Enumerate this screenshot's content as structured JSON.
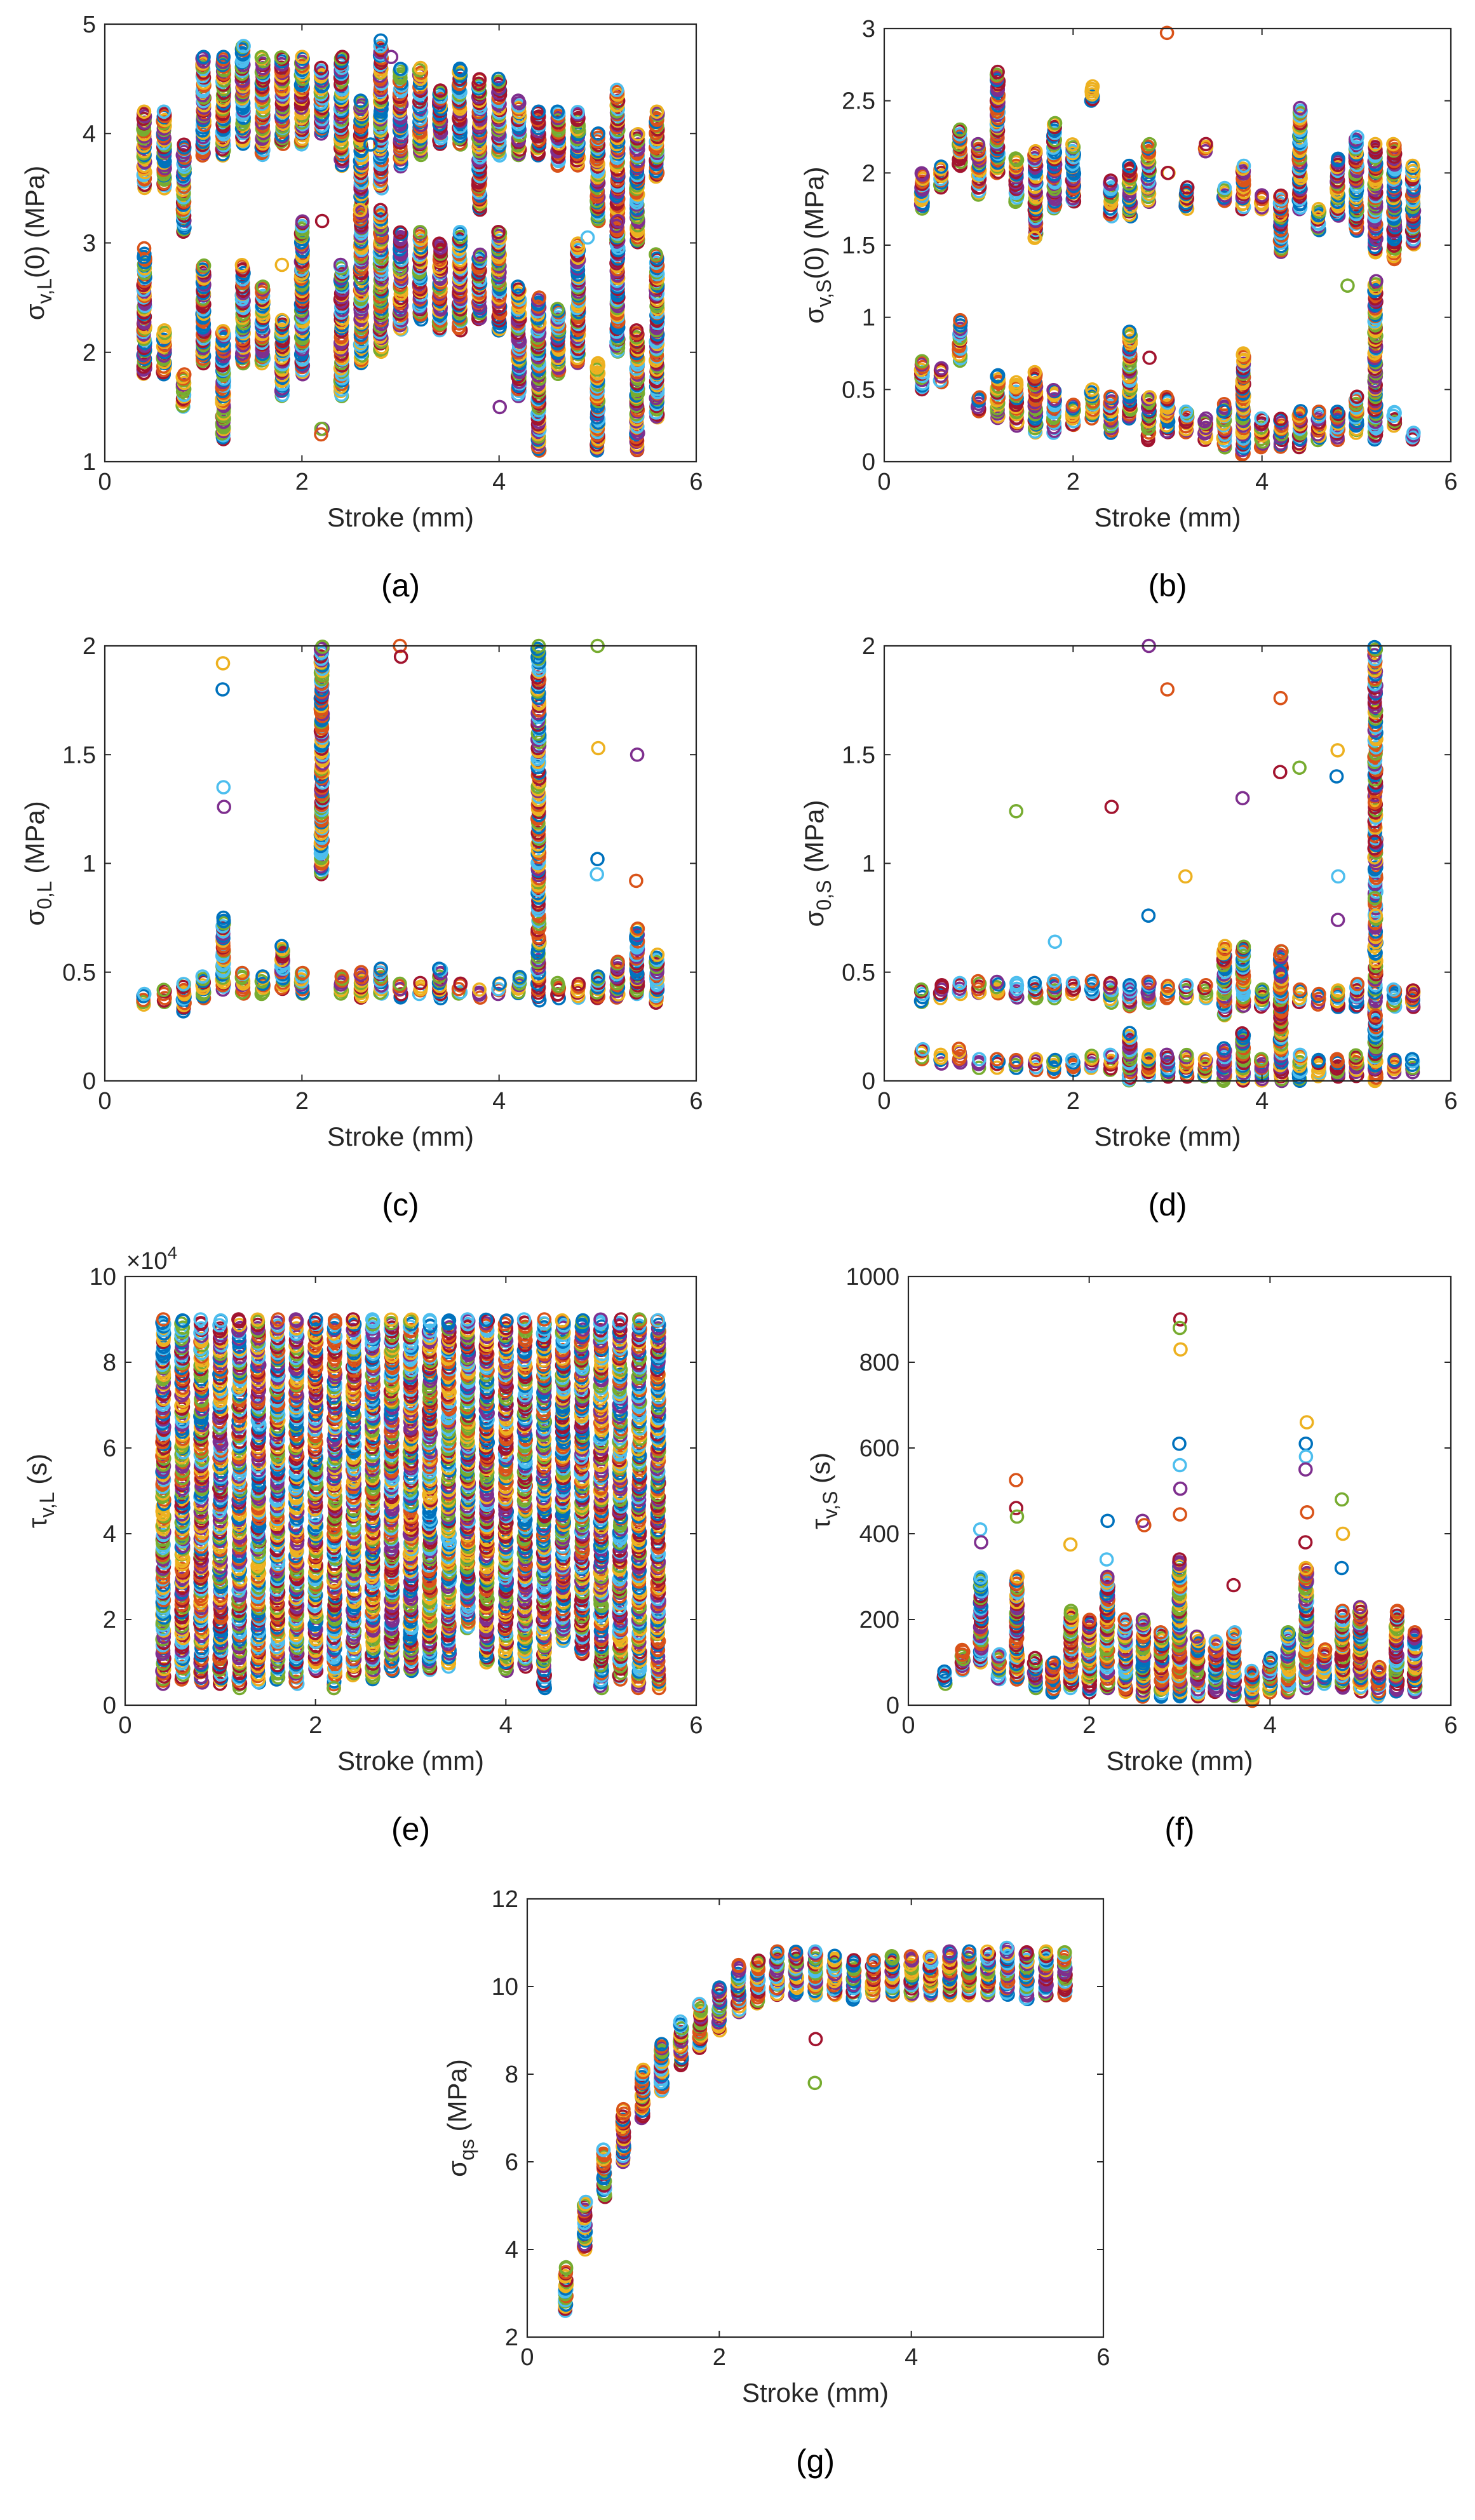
{
  "figure": {
    "xlabel": "Stroke (mm)",
    "colors": [
      "#0072BD",
      "#D95319",
      "#EDB120",
      "#7E2F8E",
      "#77AC30",
      "#4DBEEE",
      "#A2142F"
    ]
  },
  "chart_data": [
    {
      "id": "a",
      "type": "scatter",
      "panel_label": "(a)",
      "xlabel": "Stroke (mm)",
      "ylabel": "σ",
      "ylabel_sub": "v,L",
      "ylabel_suffix": "(0) (MPa)",
      "xlim": [
        0,
        6
      ],
      "ylim": [
        1,
        5
      ],
      "xticks": [
        0,
        2,
        4,
        6
      ],
      "yticks": [
        1,
        2,
        3,
        4,
        5
      ],
      "multiplier": "",
      "x": [
        0.4,
        0.6,
        0.8,
        1.0,
        1.2,
        1.4,
        1.6,
        1.8,
        2.0,
        2.2,
        2.4,
        2.6,
        2.8,
        3.0,
        3.2,
        3.4,
        3.6,
        3.8,
        4.0,
        4.2,
        4.4,
        4.6,
        4.8,
        5.0,
        5.2,
        5.4,
        5.6
      ],
      "upper_low": [
        3.5,
        3.5,
        3.1,
        3.8,
        3.8,
        3.9,
        3.8,
        3.9,
        3.9,
        4.0,
        3.7,
        3.3,
        3.5,
        3.7,
        3.8,
        3.9,
        3.9,
        3.3,
        3.8,
        3.8,
        3.8,
        3.7,
        3.7,
        3.2,
        3.0,
        3.0,
        3.6
      ],
      "upper_high": [
        4.2,
        4.2,
        3.9,
        4.7,
        4.7,
        4.8,
        4.7,
        4.7,
        4.7,
        4.6,
        4.7,
        4.3,
        4.8,
        4.6,
        4.6,
        4.4,
        4.6,
        4.5,
        4.5,
        4.3,
        4.2,
        4.2,
        4.2,
        4.0,
        4.4,
        4.0,
        4.2
      ],
      "lower_low": [
        1.8,
        1.8,
        1.5,
        1.9,
        1.2,
        1.9,
        1.9,
        1.6,
        1.8,
        1.3,
        1.6,
        1.9,
        2.0,
        2.2,
        2.3,
        2.2,
        2.2,
        2.3,
        2.2,
        1.6,
        1.1,
        1.8,
        1.9,
        1.1,
        2.0,
        1.1,
        1.4
      ],
      "lower_high": [
        2.9,
        2.2,
        1.8,
        2.8,
        2.2,
        2.8,
        2.6,
        2.3,
        3.2,
        1.3,
        2.8,
        3.3,
        3.3,
        3.1,
        3.1,
        3.0,
        3.1,
        2.9,
        3.1,
        2.6,
        2.5,
        2.4,
        3.0,
        1.9,
        3.2,
        2.2,
        2.9
      ],
      "outliers": [
        [
          2.8,
          4.85
        ],
        [
          1.4,
          4.8
        ],
        [
          2.9,
          4.7
        ],
        [
          2.2,
          1.25
        ],
        [
          2.2,
          3.2
        ],
        [
          1.6,
          2.6
        ],
        [
          1.8,
          2.8
        ],
        [
          2.7,
          3.9
        ],
        [
          4.9,
          3.05
        ],
        [
          4.0,
          1.5
        ],
        [
          0.4,
          2.95
        ]
      ]
    },
    {
      "id": "b",
      "type": "scatter",
      "panel_label": "(b)",
      "xlabel": "Stroke (mm)",
      "ylabel": "σ",
      "ylabel_sub": "v,S",
      "ylabel_suffix": "(0) (MPa)",
      "xlim": [
        0,
        6
      ],
      "ylim": [
        0,
        3
      ],
      "xticks": [
        0,
        2,
        4,
        6
      ],
      "yticks": [
        0,
        0.5,
        1,
        1.5,
        2,
        2.5,
        3
      ],
      "multiplier": "",
      "x": [
        0.4,
        0.6,
        0.8,
        1.0,
        1.2,
        1.4,
        1.6,
        1.8,
        2.0,
        2.2,
        2.4,
        2.6,
        2.8,
        3.0,
        3.2,
        3.4,
        3.6,
        3.8,
        4.0,
        4.2,
        4.4,
        4.6,
        4.8,
        5.0,
        5.2,
        5.4,
        5.6
      ],
      "upper_low": [
        1.75,
        1.9,
        2.05,
        1.85,
        2.0,
        1.8,
        1.55,
        1.75,
        1.8,
        2.5,
        1.7,
        1.7,
        1.8,
        2.0,
        1.75,
        2.15,
        1.8,
        1.75,
        1.75,
        1.45,
        1.75,
        1.6,
        1.7,
        1.6,
        1.45,
        1.4,
        1.5
      ],
      "upper_high": [
        2.0,
        2.05,
        2.3,
        2.2,
        2.7,
        2.1,
        2.15,
        2.35,
        2.2,
        2.6,
        1.95,
        2.05,
        2.2,
        2.0,
        1.9,
        2.2,
        1.9,
        2.05,
        1.85,
        1.85,
        2.45,
        1.75,
        2.1,
        2.25,
        2.2,
        2.2,
        2.05
      ],
      "lower_low": [
        0.5,
        0.55,
        0.7,
        0.35,
        0.3,
        0.25,
        0.2,
        0.2,
        0.25,
        0.3,
        0.2,
        0.3,
        0.15,
        0.2,
        0.2,
        0.15,
        0.1,
        0.05,
        0.1,
        0.1,
        0.1,
        0.15,
        0.15,
        0.2,
        0.15,
        0.25,
        0.15
      ],
      "lower_high": [
        0.7,
        0.65,
        0.98,
        0.45,
        0.6,
        0.55,
        0.62,
        0.5,
        0.4,
        0.5,
        0.45,
        0.9,
        0.45,
        0.45,
        0.35,
        0.3,
        0.4,
        0.75,
        0.3,
        0.3,
        0.35,
        0.35,
        0.35,
        0.45,
        1.25,
        0.35,
        0.2
      ],
      "outliers": [
        [
          3.0,
          2.97
        ],
        [
          2.8,
          0.72
        ],
        [
          4.9,
          1.22
        ],
        [
          1.6,
          1.55
        ],
        [
          3.6,
          0.35
        ]
      ]
    },
    {
      "id": "c",
      "type": "scatter",
      "panel_label": "(c)",
      "xlabel": "Stroke (mm)",
      "ylabel": "σ",
      "ylabel_sub": "0,L",
      "ylabel_suffix": " (MPa)",
      "xlim": [
        0,
        6
      ],
      "ylim": [
        0,
        2
      ],
      "xticks": [
        0,
        2,
        4,
        6
      ],
      "yticks": [
        0,
        0.5,
        1,
        1.5,
        2
      ],
      "multiplier": "",
      "x": [
        0.4,
        0.6,
        0.8,
        1.0,
        1.2,
        1.4,
        1.6,
        1.8,
        2.0,
        2.2,
        2.4,
        2.6,
        2.8,
        3.0,
        3.2,
        3.4,
        3.6,
        3.8,
        4.0,
        4.2,
        4.4,
        4.6,
        4.8,
        5.0,
        5.2,
        5.4,
        5.6
      ],
      "upper_low": [],
      "upper_high": [],
      "lower_low": [
        0.35,
        0.36,
        0.32,
        0.38,
        0.42,
        0.4,
        0.4,
        0.42,
        0.4,
        0.95,
        0.4,
        0.38,
        0.4,
        0.38,
        0.4,
        0.38,
        0.4,
        0.38,
        0.4,
        0.4,
        0.37,
        0.38,
        0.38,
        0.38,
        0.38,
        0.4,
        0.36
      ],
      "lower_high": [
        0.4,
        0.42,
        0.45,
        0.48,
        0.75,
        0.5,
        0.48,
        0.62,
        0.5,
        2.0,
        0.48,
        0.5,
        0.52,
        0.45,
        0.45,
        0.52,
        0.45,
        0.42,
        0.45,
        0.48,
        2.0,
        0.45,
        0.45,
        0.48,
        0.55,
        0.7,
        0.58
      ],
      "outliers": [
        [
          1.2,
          1.92
        ],
        [
          1.2,
          1.8
        ],
        [
          1.2,
          1.35
        ],
        [
          1.2,
          1.26
        ],
        [
          3.0,
          2.0
        ],
        [
          3.0,
          1.95
        ],
        [
          5.0,
          2.0
        ],
        [
          5.0,
          1.53
        ],
        [
          5.0,
          1.02
        ],
        [
          5.0,
          0.95
        ],
        [
          5.4,
          1.5
        ],
        [
          5.4,
          0.92
        ]
      ]
    },
    {
      "id": "d",
      "type": "scatter",
      "panel_label": "(d)",
      "xlabel": "Stroke (mm)",
      "ylabel": "σ",
      "ylabel_sub": "0,S",
      "ylabel_suffix": " (MPa)",
      "xlim": [
        0,
        6
      ],
      "ylim": [
        0,
        2
      ],
      "xticks": [
        0,
        2,
        4,
        6
      ],
      "yticks": [
        0,
        0.5,
        1,
        1.5,
        2
      ],
      "multiplier": "",
      "x": [
        0.4,
        0.6,
        0.8,
        1.0,
        1.2,
        1.4,
        1.6,
        1.8,
        2.0,
        2.2,
        2.4,
        2.6,
        2.8,
        3.0,
        3.2,
        3.4,
        3.6,
        3.8,
        4.0,
        4.2,
        4.4,
        4.6,
        4.8,
        5.0,
        5.2,
        5.4,
        5.6
      ],
      "upper_low": [
        0.36,
        0.38,
        0.4,
        0.4,
        0.4,
        0.38,
        0.38,
        0.38,
        0.4,
        0.4,
        0.36,
        0.34,
        0.36,
        0.38,
        0.38,
        0.38,
        0.3,
        0.34,
        0.34,
        0.3,
        0.36,
        0.35,
        0.34,
        0.34,
        0.3,
        0.34,
        0.34
      ],
      "upper_high": [
        0.42,
        0.44,
        0.45,
        0.46,
        0.46,
        0.45,
        0.45,
        0.46,
        0.45,
        0.46,
        0.45,
        0.44,
        0.46,
        0.44,
        0.44,
        0.44,
        0.62,
        0.62,
        0.42,
        0.6,
        0.42,
        0.4,
        0.42,
        0.45,
        2.0,
        0.42,
        0.42
      ],
      "lower_low": [
        0.1,
        0.08,
        0.08,
        0.06,
        0.06,
        0.06,
        0.05,
        0.04,
        0.05,
        0.06,
        0.05,
        0.0,
        0.02,
        0.02,
        0.02,
        0.02,
        0.0,
        0.0,
        0.0,
        0.0,
        0.0,
        0.02,
        0.02,
        0.02,
        0.0,
        0.04,
        0.04
      ],
      "lower_high": [
        0.15,
        0.12,
        0.15,
        0.1,
        0.1,
        0.1,
        0.1,
        0.1,
        0.1,
        0.12,
        0.12,
        0.22,
        0.12,
        0.12,
        0.12,
        0.1,
        0.15,
        0.22,
        0.1,
        0.5,
        0.12,
        0.1,
        0.1,
        0.12,
        0.3,
        0.1,
        0.1
      ],
      "outliers": [
        [
          2.8,
          2.0
        ],
        [
          3.0,
          1.8
        ],
        [
          2.4,
          1.26
        ],
        [
          1.4,
          1.24
        ],
        [
          3.2,
          0.94
        ],
        [
          2.8,
          0.76
        ],
        [
          1.8,
          0.64
        ],
        [
          3.8,
          1.3
        ],
        [
          4.2,
          1.76
        ],
        [
          4.2,
          1.42
        ],
        [
          4.4,
          1.44
        ],
        [
          4.8,
          1.52
        ],
        [
          4.8,
          1.4
        ],
        [
          4.8,
          0.94
        ],
        [
          4.8,
          0.74
        ],
        [
          5.2,
          1.28
        ],
        [
          5.2,
          1.1
        ],
        [
          5.2,
          0.84
        ],
        [
          5.2,
          0.76
        ]
      ]
    },
    {
      "id": "e",
      "type": "scatter",
      "panel_label": "(e)",
      "xlabel": "Stroke (mm)",
      "ylabel": "τ",
      "ylabel_sub": "v,L",
      "ylabel_suffix": " (s)",
      "xlim": [
        0,
        6
      ],
      "ylim": [
        0,
        10
      ],
      "xticks": [
        0,
        2,
        4,
        6
      ],
      "yticks": [
        0,
        2,
        4,
        6,
        8,
        10
      ],
      "multiplier": "×10",
      "multiplier_exp": "4",
      "x": [
        0.4,
        0.6,
        0.8,
        1.0,
        1.2,
        1.4,
        1.6,
        1.8,
        2.0,
        2.2,
        2.4,
        2.6,
        2.8,
        3.0,
        3.2,
        3.4,
        3.6,
        3.8,
        4.0,
        4.2,
        4.4,
        4.6,
        4.8,
        5.0,
        5.2,
        5.4,
        5.6
      ],
      "upper_low": [],
      "upper_high": [],
      "lower_low": [
        0.5,
        0.6,
        0.5,
        0.5,
        0.4,
        0.5,
        0.6,
        0.5,
        0.8,
        0.4,
        0.7,
        0.6,
        0.8,
        0.8,
        0.8,
        0.9,
        1.8,
        1.0,
        0.8,
        0.9,
        0.4,
        1.5,
        1.2,
        0.4,
        0.6,
        0.4,
        0.4
      ],
      "lower_high": [
        9.0,
        9.0,
        9.0,
        9.0,
        9.0,
        9.0,
        9.0,
        9.0,
        9.0,
        9.0,
        9.0,
        9.0,
        9.0,
        9.0,
        9.0,
        9.0,
        9.0,
        9.0,
        9.0,
        9.0,
        9.0,
        9.0,
        9.0,
        9.0,
        9.0,
        9.0,
        9.0
      ],
      "outliers": [
        [
          2.2,
          0.4
        ]
      ]
    },
    {
      "id": "f",
      "type": "scatter",
      "panel_label": "(f)",
      "xlabel": "Stroke (mm)",
      "ylabel": "τ",
      "ylabel_sub": "v,S",
      "ylabel_suffix": " (s)",
      "xlim": [
        0,
        6
      ],
      "ylim": [
        0,
        1000
      ],
      "xticks": [
        0,
        2,
        4,
        6
      ],
      "yticks": [
        0,
        200,
        400,
        600,
        800,
        1000
      ],
      "multiplier": "",
      "x": [
        0.4,
        0.6,
        0.8,
        1.0,
        1.2,
        1.4,
        1.6,
        1.8,
        2.0,
        2.2,
        2.4,
        2.6,
        2.8,
        3.0,
        3.2,
        3.4,
        3.6,
        3.8,
        4.0,
        4.2,
        4.4,
        4.6,
        4.8,
        5.0,
        5.2,
        5.4,
        5.6
      ],
      "upper_low": [],
      "upper_high": [],
      "lower_low": [
        50,
        80,
        100,
        60,
        60,
        40,
        30,
        40,
        30,
        40,
        30,
        20,
        20,
        20,
        20,
        30,
        20,
        10,
        30,
        30,
        40,
        50,
        40,
        30,
        20,
        30,
        30
      ],
      "lower_high": [
        80,
        130,
        300,
        120,
        300,
        110,
        100,
        220,
        200,
        300,
        200,
        200,
        170,
        340,
        160,
        150,
        170,
        80,
        110,
        170,
        320,
        130,
        220,
        230,
        90,
        220,
        170
      ],
      "outliers": [
        [
          0.8,
          410
        ],
        [
          0.8,
          380
        ],
        [
          1.2,
          525
        ],
        [
          1.2,
          460
        ],
        [
          1.2,
          440
        ],
        [
          1.8,
          375
        ],
        [
          2.2,
          430
        ],
        [
          2.2,
          340
        ],
        [
          2.6,
          430
        ],
        [
          2.6,
          420
        ],
        [
          3.0,
          900
        ],
        [
          3.0,
          880
        ],
        [
          3.0,
          830
        ],
        [
          3.0,
          610
        ],
        [
          3.0,
          560
        ],
        [
          3.0,
          505
        ],
        [
          3.0,
          445
        ],
        [
          3.6,
          280
        ],
        [
          4.2,
          170
        ],
        [
          4.4,
          660
        ],
        [
          4.4,
          610
        ],
        [
          4.4,
          580
        ],
        [
          4.4,
          550
        ],
        [
          4.4,
          450
        ],
        [
          4.4,
          380
        ],
        [
          4.8,
          480
        ],
        [
          4.8,
          400
        ],
        [
          4.8,
          320
        ]
      ]
    },
    {
      "id": "g",
      "type": "scatter",
      "panel_label": "(g)",
      "xlabel": "Stroke (mm)",
      "ylabel": "σ",
      "ylabel_sub": "qs",
      "ylabel_suffix": " (MPa)",
      "xlim": [
        0,
        6
      ],
      "ylim": [
        2,
        12
      ],
      "xticks": [
        0,
        2,
        4,
        6
      ],
      "yticks": [
        2,
        4,
        6,
        8,
        10,
        12
      ],
      "multiplier": "",
      "x": [
        0.4,
        0.6,
        0.8,
        1.0,
        1.2,
        1.4,
        1.6,
        1.8,
        2.0,
        2.2,
        2.4,
        2.6,
        2.8,
        3.0,
        3.2,
        3.4,
        3.6,
        3.8,
        4.0,
        4.2,
        4.4,
        4.6,
        4.8,
        5.0,
        5.2,
        5.4,
        5.6
      ],
      "upper_low": [],
      "upper_high": [],
      "lower_low": [
        2.6,
        4.0,
        5.2,
        6.0,
        7.0,
        7.6,
        8.2,
        8.6,
        9.0,
        9.4,
        9.6,
        9.8,
        9.8,
        9.8,
        9.8,
        9.7,
        9.8,
        9.8,
        9.8,
        9.8,
        9.8,
        9.8,
        9.8,
        9.8,
        9.7,
        9.8,
        9.8
      ],
      "lower_high": [
        3.6,
        5.1,
        6.3,
        7.2,
        8.1,
        8.7,
        9.2,
        9.6,
        10.0,
        10.5,
        10.6,
        10.8,
        10.8,
        10.8,
        10.7,
        10.6,
        10.6,
        10.7,
        10.7,
        10.7,
        10.8,
        10.8,
        10.8,
        10.9,
        10.8,
        10.8,
        10.8
      ],
      "outliers": [
        [
          3.0,
          8.8
        ],
        [
          3.0,
          7.8
        ]
      ]
    }
  ]
}
